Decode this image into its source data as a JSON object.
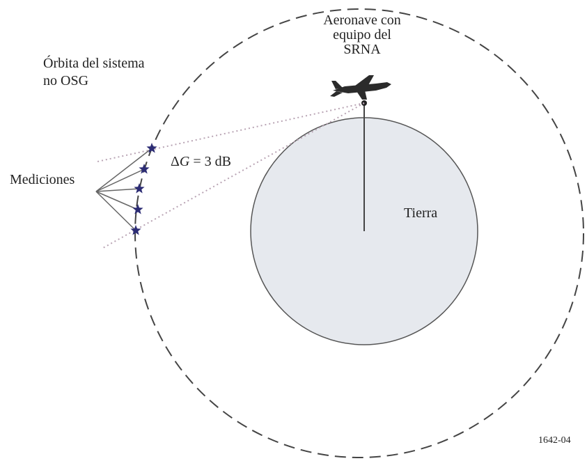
{
  "aircraft_label": {
    "lines": [
      "Aeronave con",
      "equipo del",
      "SRNA"
    ]
  },
  "orbit_label": {
    "lines": [
      "Órbita del sistema",
      "no OSG"
    ]
  },
  "measurements_label": "Mediciones",
  "gain_label": {
    "symbol": "Δ",
    "variable": "G",
    "rest": " = 3 dB"
  },
  "earth_label": "Tierra",
  "figure_id": "1642-04"
}
